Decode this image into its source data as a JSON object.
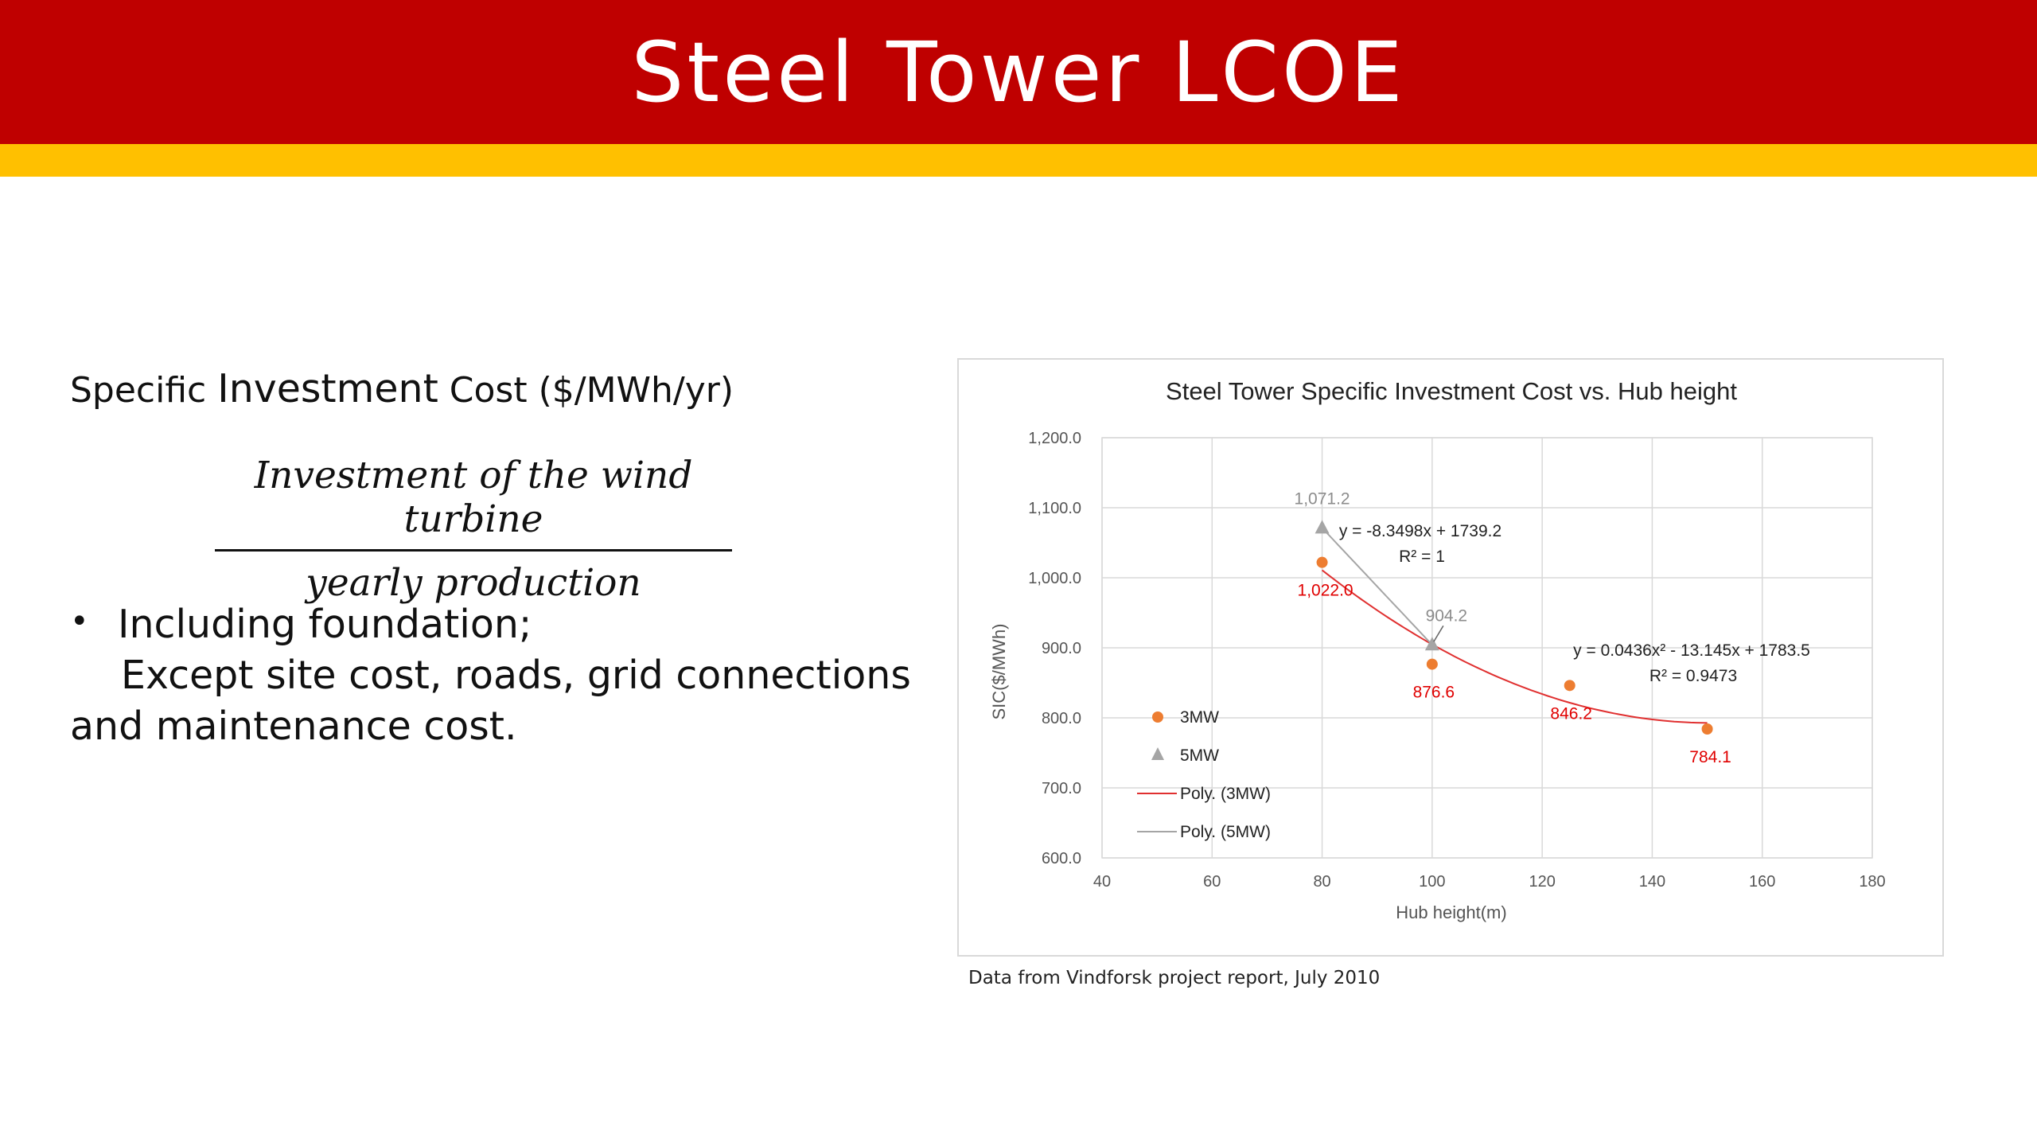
{
  "slide": {
    "title": "Steel Tower LCOE"
  },
  "content": {
    "heading_prefix": "Specific ",
    "heading_big": "Investment",
    "heading_suffix": " Cost ($/MWh/yr)",
    "formula_numerator": "Investment of the wind turbine",
    "formula_denominator": "yearly production",
    "bullet_symbol": "•",
    "bullet_text": "Including foundation;",
    "continuation_1": "Except site cost, roads, grid connections",
    "continuation_2": "and maintenance cost.",
    "source_note": "Data from Vindforsk project report, July 2010"
  },
  "colors": {
    "header": "#bf0000",
    "stripe": "#ffc000",
    "series_3mw": "#ed7d31",
    "series_5mw": "#a5a5a5",
    "trend_3mw": "#e03030",
    "trend_5mw": "#a5a5a5",
    "label_3mw": "#e00000",
    "label_5mw": "#8c8c8c"
  },
  "chart_data": {
    "type": "scatter",
    "title": "Steel Tower Specific Investment Cost vs. Hub height",
    "xlabel": "Hub height(m)",
    "ylabel": "SIC($/MWh)",
    "xlim": [
      40,
      180
    ],
    "ylim": [
      600,
      1200
    ],
    "x_ticks": [
      40,
      60,
      80,
      100,
      120,
      140,
      160,
      180
    ],
    "y_ticks": [
      600,
      700,
      800,
      900,
      1000,
      1100,
      1200
    ],
    "y_tick_labels": [
      "600.0",
      "700.0",
      "800.0",
      "900.0",
      "1,000.0",
      "1,100.0",
      "1,200.0"
    ],
    "grid": true,
    "legend_position": "bottom-left inside plot",
    "series": [
      {
        "name": "3MW",
        "marker": "circle",
        "x": [
          80,
          100,
          125,
          150
        ],
        "y": [
          1022.0,
          876.6,
          846.2,
          784.1
        ],
        "data_labels": [
          "1,022.0",
          "876.6",
          "846.2",
          "784.1"
        ]
      },
      {
        "name": "5MW",
        "marker": "triangle",
        "x": [
          80,
          100
        ],
        "y": [
          1071.2,
          904.2
        ],
        "data_labels": [
          "1,071.2",
          "904.2"
        ]
      }
    ],
    "trendlines": [
      {
        "name": "Poly. (3MW)",
        "equation": "y = 0.0436x² - 13.145x + 1783.5",
        "r2": "R² = 0.9473",
        "coefficients": [
          0.0436,
          -13.145,
          1783.5
        ],
        "x_range": [
          80,
          150
        ]
      },
      {
        "name": "Poly. (5MW)",
        "equation": "y = -8.3498x + 1739.2",
        "r2": "R² = 1",
        "coefficients": [
          0,
          -8.3498,
          1739.2
        ],
        "x_range": [
          80,
          100
        ]
      }
    ]
  }
}
